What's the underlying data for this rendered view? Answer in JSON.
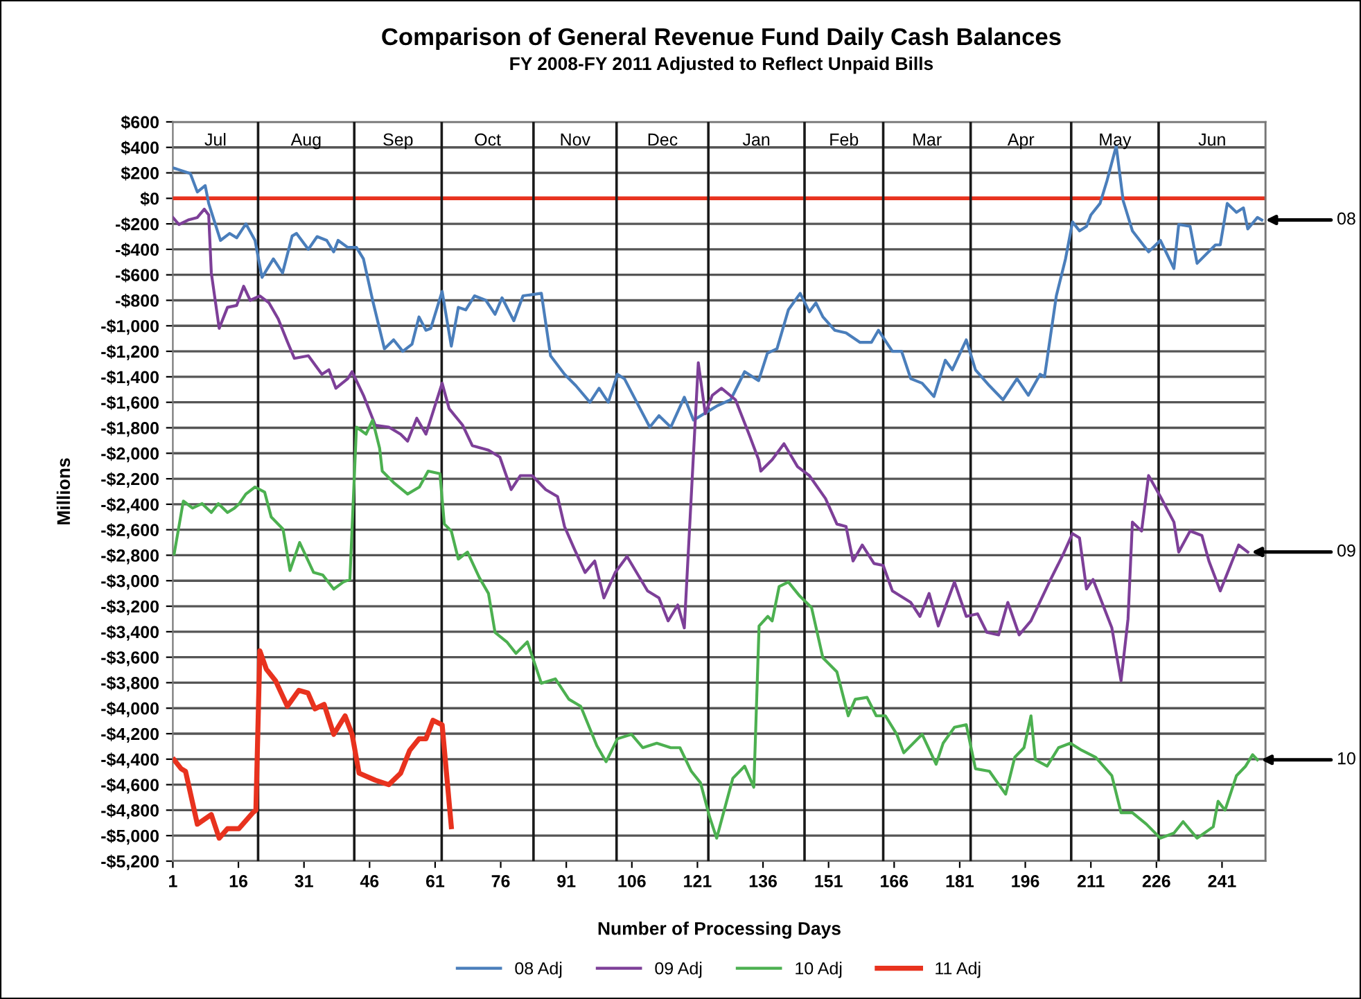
{
  "chart_data": {
    "type": "line",
    "title": "Comparison of General Revenue Fund Daily Cash Balances",
    "subtitle": "FY 2008-FY 2011 Adjusted to Reflect Unpaid Bills",
    "xlabel": "Number of Processing Days",
    "ylabel": "Millions",
    "xlim": [
      1,
      251
    ],
    "xticks": [
      1,
      16,
      31,
      46,
      61,
      76,
      91,
      106,
      121,
      136,
      151,
      166,
      181,
      196,
      211,
      226,
      241
    ],
    "ylim": [
      -5200,
      600
    ],
    "yticks": [
      {
        "value": 600,
        "label": "$600"
      },
      {
        "value": 400,
        "label": "$400"
      },
      {
        "value": 200,
        "label": "$200"
      },
      {
        "value": 0,
        "label": "$0"
      },
      {
        "value": -200,
        "label": "-$200"
      },
      {
        "value": -400,
        "label": "-$400"
      },
      {
        "value": -600,
        "label": "-$600"
      },
      {
        "value": -800,
        "label": "-$800"
      },
      {
        "value": -1000,
        "label": "-$1,000"
      },
      {
        "value": -1200,
        "label": "-$1,200"
      },
      {
        "value": -1400,
        "label": "-$1,400"
      },
      {
        "value": -1600,
        "label": "-$1,600"
      },
      {
        "value": -1800,
        "label": "-$1,800"
      },
      {
        "value": -2000,
        "label": "-$2,000"
      },
      {
        "value": -2200,
        "label": "-$2,200"
      },
      {
        "value": -2400,
        "label": "-$2,400"
      },
      {
        "value": -2600,
        "label": "-$2,600"
      },
      {
        "value": -2800,
        "label": "-$2,800"
      },
      {
        "value": -3000,
        "label": "-$3,000"
      },
      {
        "value": -3200,
        "label": "-$3,200"
      },
      {
        "value": -3400,
        "label": "-$3,400"
      },
      {
        "value": -3600,
        "label": "-$3,600"
      },
      {
        "value": -3800,
        "label": "-$3,800"
      },
      {
        "value": -4000,
        "label": "-$4,000"
      },
      {
        "value": -4200,
        "label": "-$4,200"
      },
      {
        "value": -4400,
        "label": "-$4,400"
      },
      {
        "value": -4600,
        "label": "-$4,600"
      },
      {
        "value": -4800,
        "label": "-$4,800"
      },
      {
        "value": -5000,
        "label": "-$5,000"
      },
      {
        "value": -5200,
        "label": "-$5,200"
      }
    ],
    "grid": "y",
    "legend": "bottom",
    "marker": "none",
    "line_style": "solid",
    "ref_lines": [
      {
        "axis": "y",
        "value": 0,
        "color": "#e8321e"
      },
      {
        "axis": "x",
        "value": 20.5,
        "label": "Jul",
        "color": "#1a1a1a"
      },
      {
        "axis": "x",
        "value": 42.5,
        "label": "Aug",
        "color": "#1a1a1a"
      },
      {
        "axis": "x",
        "value": 62.5,
        "label": "Sep",
        "color": "#1a1a1a"
      },
      {
        "axis": "x",
        "value": 83.5,
        "label": "Oct",
        "color": "#1a1a1a"
      },
      {
        "axis": "x",
        "value": 102.5,
        "label": "Nov",
        "color": "#1a1a1a"
      },
      {
        "axis": "x",
        "value": 123.5,
        "label": "Dec",
        "color": "#1a1a1a"
      },
      {
        "axis": "x",
        "value": 145.5,
        "label": "Jan",
        "color": "#1a1a1a"
      },
      {
        "axis": "x",
        "value": 163.5,
        "label": "Feb",
        "color": "#1a1a1a"
      },
      {
        "axis": "x",
        "value": 183.5,
        "label": "Mar",
        "color": "#1a1a1a"
      },
      {
        "axis": "x",
        "value": 206.5,
        "label": "Apr",
        "color": "#1a1a1a"
      },
      {
        "axis": "x",
        "value": 226.5,
        "label": "May",
        "color": "#1a1a1a"
      },
      {
        "axis": "x",
        "value": 251,
        "label": "Jun",
        "color": "#777777"
      }
    ],
    "annotations": [
      {
        "text": "08",
        "x": 250.1,
        "y": -170
      },
      {
        "text": "09",
        "x": 246.9,
        "y": -2775
      },
      {
        "text": "10",
        "x": 249.1,
        "y": -4405
      }
    ],
    "series": [
      {
        "name": "08 Adj",
        "color": "#4a7ebb",
        "x": [
          1,
          5,
          6.6,
          8.4,
          9.2,
          11.9,
          14,
          15.6,
          17.7,
          19.8,
          21.4,
          24,
          26.1,
          28.3,
          29.3,
          32,
          34,
          36.2,
          37.8,
          38.8,
          41,
          43,
          44.6,
          46.7,
          49.4,
          51.5,
          53.6,
          55.7,
          57.3,
          58.9,
          60,
          62.6,
          64.7,
          66.3,
          68,
          70,
          72.6,
          74.7,
          76.3,
          79,
          81.1,
          85.3,
          87.4,
          90.6,
          93.2,
          96.4,
          98.5,
          100.6,
          102.7,
          104.3,
          110.1,
          112.2,
          114.9,
          118,
          120.1,
          125.4,
          128.6,
          131.8,
          135,
          137,
          139.2,
          141.8,
          144.5,
          146.6,
          148.1,
          149.7,
          152.4,
          155,
          158.2,
          160.8,
          162.4,
          165.6,
          167.7,
          169.8,
          172.4,
          175.1,
          177.7,
          179.3,
          182.5,
          184.6,
          187.8,
          190.9,
          194.1,
          196.7,
          199.4,
          200.4,
          203.1,
          205.2,
          206.8,
          208.4,
          210,
          211,
          213.1,
          214.7,
          216.8,
          218.4,
          220.5,
          224.2,
          226.9,
          230,
          231.1,
          233.7,
          235.3,
          239.5,
          240.6,
          242.2,
          244.3,
          245.9,
          246.9,
          249.1,
          250.1
        ],
        "values": [
          240,
          195,
          50,
          100,
          -40,
          -330,
          -275,
          -310,
          -200,
          -330,
          -620,
          -475,
          -585,
          -295,
          -275,
          -400,
          -300,
          -330,
          -420,
          -330,
          -385,
          -385,
          -475,
          -800,
          -1180,
          -1110,
          -1200,
          -1145,
          -930,
          -1035,
          -1020,
          -730,
          -1160,
          -855,
          -875,
          -765,
          -800,
          -910,
          -780,
          -960,
          -765,
          -745,
          -1235,
          -1380,
          -1470,
          -1600,
          -1490,
          -1600,
          -1380,
          -1415,
          -1795,
          -1705,
          -1795,
          -1560,
          -1740,
          -1630,
          -1580,
          -1360,
          -1430,
          -1215,
          -1180,
          -875,
          -745,
          -890,
          -820,
          -930,
          -1035,
          -1055,
          -1130,
          -1130,
          -1035,
          -1200,
          -1200,
          -1415,
          -1450,
          -1555,
          -1270,
          -1345,
          -1110,
          -1345,
          -1470,
          -1580,
          -1415,
          -1545,
          -1380,
          -1400,
          -765,
          -475,
          -185,
          -255,
          -220,
          -130,
          -40,
          140,
          410,
          -20,
          -255,
          -420,
          -330,
          -550,
          -205,
          -220,
          -510,
          -365,
          -365,
          -40,
          -110,
          -75,
          -240,
          -150,
          -170
        ]
      },
      {
        "name": "09 Adj",
        "color": "#7d3f98",
        "x": [
          1,
          2.4,
          4.5,
          6.6,
          8.2,
          9.2,
          9.8,
          11.6,
          13.5,
          15.6,
          17.2,
          18.7,
          20.9,
          23,
          25.1,
          27.2,
          28.8,
          32,
          35.1,
          36.7,
          38.3,
          41,
          42,
          44.6,
          47.3,
          50.4,
          53.1,
          54.7,
          56.8,
          58.9,
          62.6,
          64.2,
          67.3,
          69.5,
          73.2,
          75.8,
          78.4,
          80.5,
          83.2,
          86.3,
          89,
          90.6,
          92.7,
          95.3,
          97.5,
          99.6,
          102.2,
          104.9,
          109.6,
          112.2,
          114.3,
          116.5,
          118,
          121.2,
          122.8,
          124.4,
          126.5,
          129.7,
          132.8,
          135,
          135.5,
          138.1,
          140.8,
          143.9,
          146.6,
          150.3,
          152.9,
          155,
          156.6,
          158.7,
          161.4,
          163.5,
          165.6,
          169.8,
          171.9,
          174,
          176.1,
          179.8,
          182.5,
          185.1,
          187.2,
          189.9,
          192,
          194.6,
          197.3,
          201.5,
          204.7,
          206.8,
          208.4,
          210,
          211.5,
          215.8,
          217.9,
          219.5,
          220.5,
          222.6,
          224.2,
          226.9,
          230,
          231.1,
          233.7,
          236.4,
          238,
          240.6,
          242.7,
          244.8,
          246.9
        ],
        "values": [
          -150,
          -205,
          -170,
          -150,
          -85,
          -130,
          -585,
          -1020,
          -855,
          -840,
          -690,
          -800,
          -765,
          -820,
          -945,
          -1125,
          -1255,
          -1235,
          -1380,
          -1345,
          -1490,
          -1415,
          -1360,
          -1545,
          -1780,
          -1795,
          -1850,
          -1905,
          -1725,
          -1850,
          -1450,
          -1650,
          -1780,
          -1940,
          -1975,
          -2030,
          -2285,
          -2175,
          -2175,
          -2285,
          -2340,
          -2575,
          -2740,
          -2935,
          -2845,
          -3135,
          -2935,
          -2810,
          -3080,
          -3135,
          -3315,
          -3190,
          -3370,
          -1290,
          -1690,
          -1545,
          -1490,
          -1580,
          -1850,
          -2050,
          -2140,
          -2050,
          -1925,
          -2105,
          -2175,
          -2355,
          -2555,
          -2575,
          -2845,
          -2720,
          -2865,
          -2880,
          -3080,
          -3170,
          -3280,
          -3100,
          -3355,
          -3010,
          -3280,
          -3260,
          -3405,
          -3425,
          -3170,
          -3425,
          -3315,
          -3010,
          -2790,
          -2630,
          -2665,
          -3065,
          -2990,
          -3370,
          -3785,
          -3300,
          -2540,
          -2610,
          -2175,
          -2340,
          -2540,
          -2775,
          -2610,
          -2645,
          -2845,
          -3080,
          -2900,
          -2720,
          -2775
        ]
      },
      {
        "name": "10 Adj",
        "color": "#4cb050",
        "x": [
          1.3,
          3.4,
          5.5,
          7.7,
          9.8,
          11.4,
          13.5,
          15.1,
          16.2,
          17.7,
          19.8,
          22,
          23.5,
          26.2,
          27.8,
          30,
          33.2,
          35.3,
          37.8,
          40,
          41.5,
          43,
          45.2,
          46.7,
          48.3,
          48.9,
          51.5,
          54.7,
          57.4,
          59.4,
          62.1,
          63.1,
          64.7,
          66.3,
          68.4,
          71.1,
          73.2,
          74.7,
          77.4,
          79.5,
          82.1,
          85.3,
          88.5,
          91.6,
          94.3,
          98,
          100.1,
          102.7,
          105.9,
          108.5,
          111.7,
          114.9,
          117,
          119.6,
          121.7,
          123.8,
          125.4,
          129.1,
          131.8,
          133.9,
          135.1,
          137.1,
          138.1,
          139.7,
          141.8,
          144.4,
          147.1,
          149.7,
          152.9,
          155.5,
          157.1,
          159.8,
          161.9,
          164,
          166.6,
          168.2,
          172.4,
          175.6,
          177.2,
          179.8,
          182.5,
          184.6,
          187.8,
          191.5,
          193.6,
          195.7,
          197.3,
          198.3,
          201,
          203.6,
          206.3,
          208.9,
          212.1,
          215.8,
          217.9,
          220.5,
          223.7,
          226.9,
          230,
          232.1,
          235.3,
          239,
          240.1,
          241.7,
          244.3,
          246.4,
          248,
          249.1
        ],
        "values": [
          -2790,
          -2375,
          -2430,
          -2395,
          -2465,
          -2395,
          -2465,
          -2430,
          -2395,
          -2320,
          -2265,
          -2305,
          -2500,
          -2595,
          -2920,
          -2700,
          -2935,
          -2955,
          -3065,
          -3010,
          -2990,
          -1795,
          -1850,
          -1740,
          -1960,
          -2140,
          -2230,
          -2320,
          -2265,
          -2140,
          -2160,
          -2555,
          -2610,
          -2830,
          -2775,
          -2975,
          -3100,
          -3405,
          -3480,
          -3570,
          -3480,
          -3805,
          -3770,
          -3930,
          -3985,
          -4295,
          -4420,
          -4240,
          -4205,
          -4310,
          -4275,
          -4310,
          -4310,
          -4495,
          -4585,
          -4855,
          -5020,
          -4550,
          -4455,
          -4620,
          -3355,
          -3280,
          -3315,
          -3045,
          -3010,
          -3120,
          -3210,
          -3605,
          -3715,
          -4060,
          -3930,
          -3915,
          -4060,
          -4060,
          -4205,
          -4350,
          -4205,
          -4440,
          -4275,
          -4150,
          -4130,
          -4475,
          -4495,
          -4675,
          -4385,
          -4310,
          -4060,
          -4405,
          -4455,
          -4310,
          -4275,
          -4330,
          -4385,
          -4530,
          -4820,
          -4820,
          -4910,
          -5020,
          -4980,
          -4890,
          -5020,
          -4930,
          -4730,
          -4800,
          -4530,
          -4455,
          -4365,
          -4405
        ]
      },
      {
        "name": "11 Adj",
        "color": "#e8321e",
        "x": [
          1.3,
          2.9,
          3.9,
          6.6,
          9.8,
          11.6,
          13.5,
          16.1,
          19.3,
          20,
          20.9,
          22.4,
          24.5,
          27.2,
          29.8,
          31.9,
          33.5,
          35.6,
          37.8,
          40.4,
          42,
          43.6,
          47.3,
          50.4,
          53.1,
          55.2,
          57.3,
          58.9,
          60.5,
          62.6,
          64.7
        ],
        "values": [
          -4405,
          -4475,
          -4495,
          -4910,
          -4835,
          -5020,
          -4945,
          -4945,
          -4820,
          -4800,
          -3550,
          -3695,
          -3785,
          -3985,
          -3860,
          -3880,
          -4005,
          -3970,
          -4205,
          -4060,
          -4205,
          -4510,
          -4565,
          -4600,
          -4510,
          -4330,
          -4240,
          -4240,
          -4095,
          -4130,
          -4930
        ]
      }
    ]
  }
}
